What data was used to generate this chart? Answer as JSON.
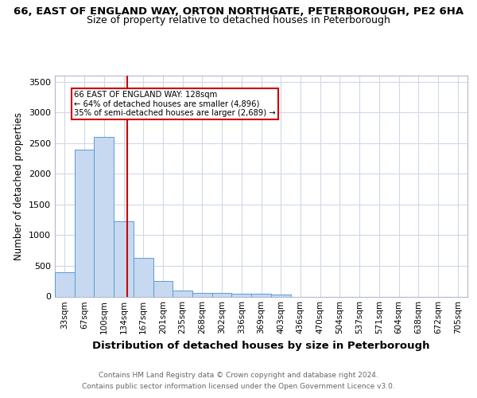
{
  "title_line1": "66, EAST OF ENGLAND WAY, ORTON NORTHGATE, PETERBOROUGH, PE2 6HA",
  "title_line2": "Size of property relative to detached houses in Peterborough",
  "xlabel": "Distribution of detached houses by size in Peterborough",
  "ylabel": "Number of detached properties",
  "categories": [
    "33sqm",
    "67sqm",
    "100sqm",
    "134sqm",
    "167sqm",
    "201sqm",
    "235sqm",
    "268sqm",
    "302sqm",
    "336sqm",
    "369sqm",
    "403sqm",
    "436sqm",
    "470sqm",
    "504sqm",
    "537sqm",
    "571sqm",
    "604sqm",
    "638sqm",
    "672sqm",
    "705sqm"
  ],
  "bar_values": [
    390,
    2400,
    2600,
    1220,
    630,
    250,
    100,
    60,
    55,
    50,
    40,
    30,
    0,
    0,
    0,
    0,
    0,
    0,
    0,
    0,
    0
  ],
  "bar_color": "#c6d9f0",
  "bar_edge_color": "#5b9bd5",
  "property_label": "66 EAST OF ENGLAND WAY: 128sqm",
  "annotation_line2": "← 64% of detached houses are smaller (4,896)",
  "annotation_line3": "35% of semi-detached houses are larger (2,689) →",
  "vline_color": "#cc0000",
  "vline_x": 3.18,
  "ylim": [
    0,
    3600
  ],
  "yticks": [
    0,
    500,
    1000,
    1500,
    2000,
    2500,
    3000,
    3500
  ],
  "footer_line1": "Contains HM Land Registry data © Crown copyright and database right 2024.",
  "footer_line2": "Contains public sector information licensed under the Open Government Licence v3.0.",
  "bg_color": "#ffffff",
  "grid_color": "#d0d8e8"
}
